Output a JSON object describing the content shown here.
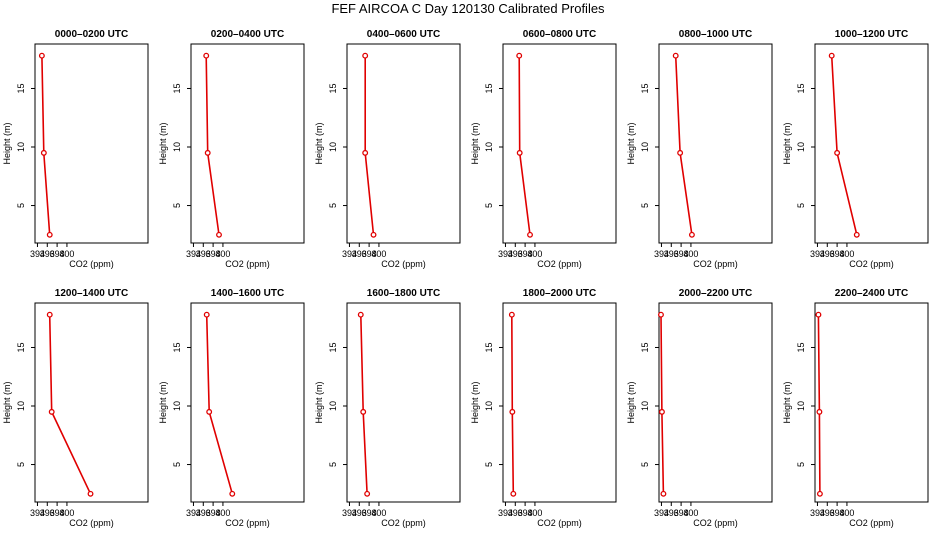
{
  "title": "FEF AIRCOA C  Day 120130  Calibrated Profiles",
  "colors": {
    "profile": "#e00000",
    "axis": "#000000"
  },
  "chart_data": {
    "type": "line",
    "xlabel": "CO2 (ppm)",
    "ylabel": "Height (m)",
    "xlim": [
      393.5,
      416.5
    ],
    "ylim": [
      1.8,
      18.8
    ],
    "xticks": [
      394,
      396,
      398,
      400
    ],
    "xtick_labels": [
      "394",
      "396",
      "398",
      "400"
    ],
    "yticks": [
      5,
      10,
      15
    ],
    "ytick_labels": [
      "5",
      "10",
      "15"
    ],
    "heights": [
      17.8,
      9.5,
      2.5
    ],
    "panels": [
      {
        "title": "0000–0200 UTC",
        "co2": [
          394.9,
          395.3,
          396.5
        ]
      },
      {
        "title": "0200–0400 UTC",
        "co2": [
          396.6,
          396.9,
          399.2
        ]
      },
      {
        "title": "0400–0600 UTC",
        "co2": [
          397.2,
          397.2,
          398.9
        ]
      },
      {
        "title": "0600–0800 UTC",
        "co2": [
          396.8,
          396.9,
          399.0
        ]
      },
      {
        "title": "0800–1000 UTC",
        "co2": [
          396.9,
          397.8,
          400.2
        ]
      },
      {
        "title": "1000–1200 UTC",
        "co2": [
          396.9,
          398.0,
          402.0
        ]
      },
      {
        "title": "1200–1400 UTC",
        "co2": [
          396.5,
          396.9,
          404.8
        ]
      },
      {
        "title": "1400–1600 UTC",
        "co2": [
          396.7,
          397.2,
          401.9
        ]
      },
      {
        "title": "1600–1800 UTC",
        "co2": [
          396.3,
          396.8,
          397.6
        ]
      },
      {
        "title": "1800–2000 UTC",
        "co2": [
          395.3,
          395.4,
          395.6
        ]
      },
      {
        "title": "2000–2200 UTC",
        "co2": [
          393.9,
          394.1,
          394.4
        ]
      },
      {
        "title": "2200–2400 UTC",
        "co2": [
          394.2,
          394.4,
          394.5
        ]
      }
    ]
  }
}
